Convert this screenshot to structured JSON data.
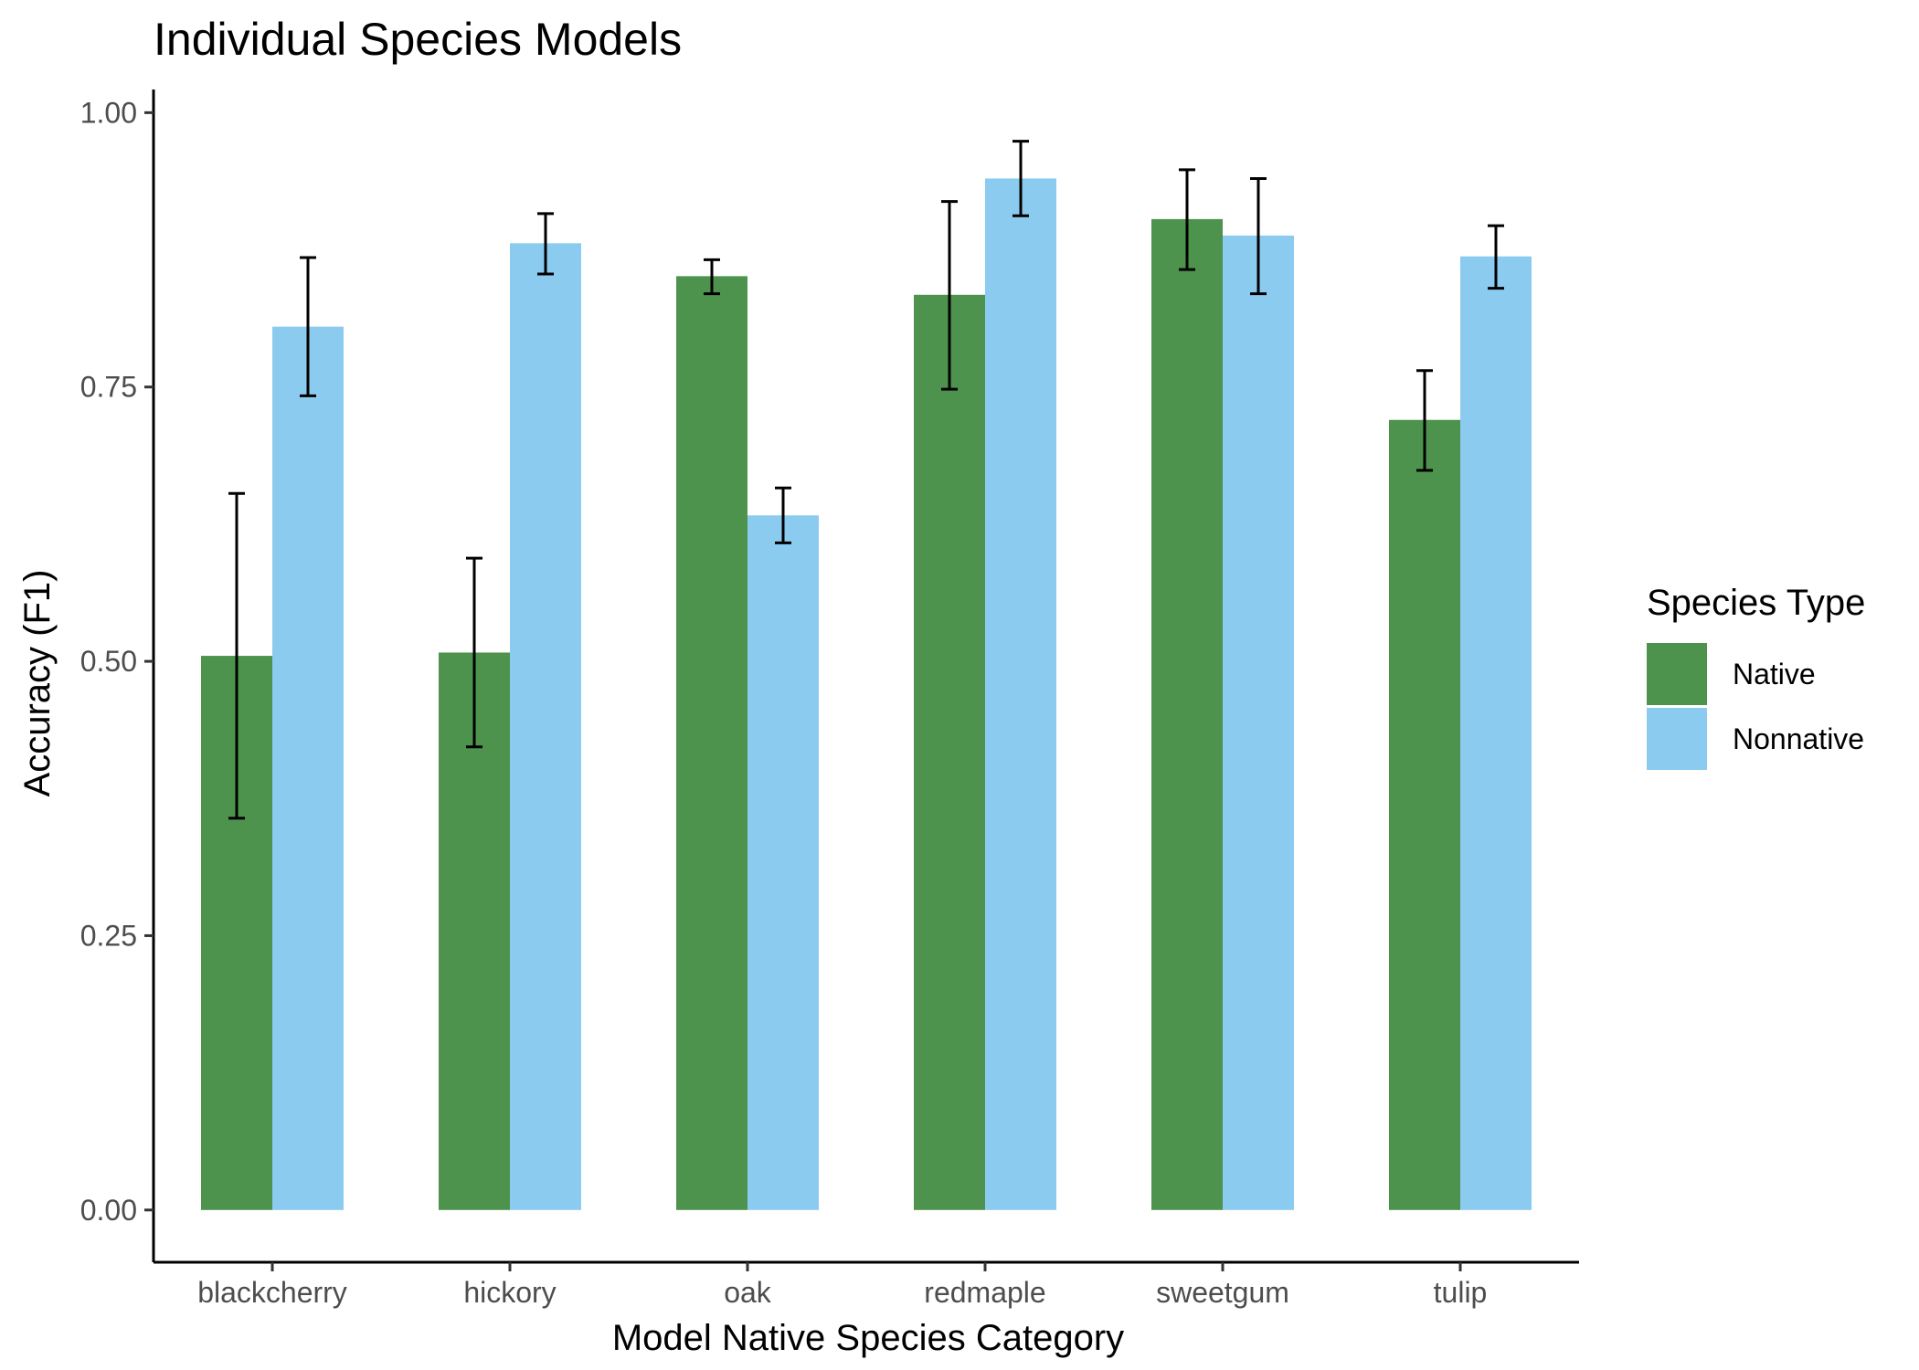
{
  "chart_data": {
    "type": "bar",
    "title": "Individual Species Models",
    "xlabel": "Model Native Species Category",
    "ylabel": "Accuracy (F1)",
    "categories": [
      "blackcherry",
      "hickory",
      "oak",
      "redmaple",
      "sweetgum",
      "tulip"
    ],
    "series": [
      {
        "name": "Native",
        "color": "#4d934d",
        "values": [
          0.505,
          0.508,
          0.851,
          0.834,
          0.903,
          0.72
        ],
        "error_low": [
          0.357,
          0.422,
          0.835,
          0.748,
          0.857,
          0.674
        ],
        "error_high": [
          0.653,
          0.594,
          0.866,
          0.919,
          0.948,
          0.765
        ]
      },
      {
        "name": "Nonnative",
        "color": "#8ccbf0",
        "values": [
          0.805,
          0.881,
          0.633,
          0.94,
          0.888,
          0.869
        ],
        "error_low": [
          0.742,
          0.853,
          0.608,
          0.906,
          0.835,
          0.84
        ],
        "error_high": [
          0.868,
          0.908,
          0.658,
          0.974,
          0.94,
          0.897
        ]
      }
    ],
    "ylim": [
      -0.0476,
      1.0211
    ],
    "yticks": [
      "0.00",
      "0.25",
      "0.50",
      "0.75",
      "1.00"
    ],
    "ytick_values": [
      0,
      0.25,
      0.5,
      0.75,
      1.0
    ],
    "legend": {
      "title": "Species Type",
      "position": "right"
    },
    "grid": false
  }
}
